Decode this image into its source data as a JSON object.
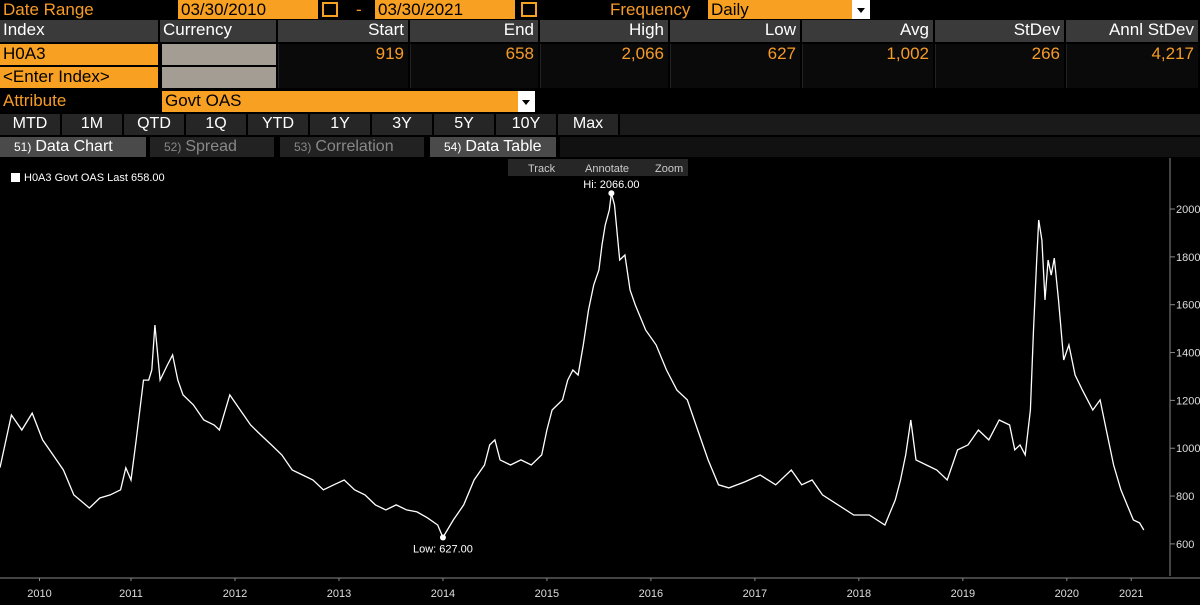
{
  "header": {
    "date_range_label": "Date Range",
    "start_date": "03/30/2010",
    "separator": "-",
    "end_date": "03/30/2021",
    "frequency_label": "Frequency",
    "frequency": "Daily"
  },
  "table": {
    "columns": [
      "Index",
      "Currency",
      "Start",
      "End",
      "High",
      "Low",
      "Avg",
      "StDev",
      "Annl StDev"
    ],
    "index": "H0A3",
    "values": [
      "919",
      "658",
      "2,066",
      "627",
      "1,002",
      "266",
      "4,217"
    ],
    "index_placeholder": "<Enter Index>"
  },
  "attribute": {
    "label": "Attribute",
    "value": "Govt OAS"
  },
  "periods": [
    "MTD",
    "1M",
    "QTD",
    "1Q",
    "YTD",
    "1Y",
    "3Y",
    "5Y",
    "10Y",
    "Max"
  ],
  "tabs": [
    {
      "number": "51)",
      "label": "Data Chart"
    },
    {
      "number": "52)",
      "label": "Spread"
    },
    {
      "number": "53)",
      "label": "Correlation"
    },
    {
      "number": "54)",
      "label": "Data Table"
    }
  ],
  "toolbar": [
    "Track",
    "Annotate",
    "Zoom"
  ],
  "chart_data": {
    "type": "line",
    "x": [
      2010.24,
      2010.35,
      2010.45,
      2010.55,
      2010.65,
      2010.75,
      2010.85,
      2010.95,
      2011.1,
      2011.2,
      2011.3,
      2011.4,
      2011.45,
      2011.5,
      2011.55,
      2011.62,
      2011.67,
      2011.7,
      2011.73,
      2011.78,
      2011.85,
      2011.9,
      2011.95,
      2012.0,
      2012.1,
      2012.2,
      2012.3,
      2012.35,
      2012.45,
      2012.55,
      2012.65,
      2012.75,
      2012.85,
      2012.95,
      2013.05,
      2013.15,
      2013.25,
      2013.35,
      2013.45,
      2013.55,
      2013.65,
      2013.75,
      2013.85,
      2013.95,
      2014.05,
      2014.15,
      2014.25,
      2014.35,
      2014.45,
      2014.5,
      2014.6,
      2014.7,
      2014.8,
      2014.9,
      2014.95,
      2015.0,
      2015.05,
      2015.15,
      2015.25,
      2015.35,
      2015.45,
      2015.5,
      2015.55,
      2015.65,
      2015.7,
      2015.75,
      2015.8,
      2015.85,
      2015.9,
      2015.95,
      2016.0,
      2016.03,
      2016.06,
      2016.1,
      2016.12,
      2016.15,
      2016.2,
      2016.25,
      2016.3,
      2016.35,
      2016.45,
      2016.55,
      2016.65,
      2016.75,
      2016.85,
      2016.95,
      2017.05,
      2017.15,
      2017.25,
      2017.4,
      2017.55,
      2017.7,
      2017.85,
      2017.95,
      2018.05,
      2018.15,
      2018.3,
      2018.45,
      2018.6,
      2018.75,
      2018.85,
      2018.9,
      2018.95,
      2019.0,
      2019.05,
      2019.15,
      2019.25,
      2019.35,
      2019.45,
      2019.55,
      2019.65,
      2019.75,
      2019.85,
      2019.95,
      2020.0,
      2020.05,
      2020.1,
      2020.15,
      2020.18,
      2020.21,
      2020.23,
      2020.26,
      2020.29,
      2020.32,
      2020.35,
      2020.38,
      2020.42,
      2020.47,
      2020.52,
      2020.58,
      2020.65,
      2020.75,
      2020.82,
      2020.88,
      2020.95,
      2021.02,
      2021.08,
      2021.14,
      2021.2,
      2021.24
    ],
    "series": [
      {
        "name": "H0A3 Govt OAS Last 658.00",
        "color": "#ffffff",
        "values": [
          919,
          1139,
          1076,
          1147,
          1035,
          972,
          909,
          805,
          750,
          792,
          805,
          826,
          918,
          867,
          1035,
          1285,
          1285,
          1327,
          1515,
          1285,
          1348,
          1390,
          1285,
          1223,
          1181,
          1118,
          1097,
          1076,
          1223,
          1160,
          1097,
          1055,
          1014,
          972,
          909,
          888,
          867,
          826,
          847,
          867,
          826,
          805,
          763,
          742,
          763,
          742,
          734,
          709,
          679,
          627,
          700,
          763,
          867,
          930,
          1014,
          1035,
          951,
          930,
          951,
          930,
          972,
          1076,
          1160,
          1202,
          1285,
          1327,
          1306,
          1432,
          1578,
          1682,
          1745,
          1850,
          1933,
          1996,
          2066,
          2017,
          1787,
          1808,
          1661,
          1599,
          1494,
          1432,
          1327,
          1243,
          1202,
          1076,
          951,
          847,
          834,
          859,
          888,
          847,
          909,
          847,
          867,
          805,
          763,
          721,
          721,
          679,
          784,
          867,
          972,
          1118,
          951,
          930,
          909,
          867,
          993,
          1014,
          1076,
          1035,
          1118,
          1097,
          993,
          1014,
          972,
          1160,
          1494,
          1787,
          1954,
          1870,
          1620,
          1787,
          1724,
          1795,
          1620,
          1369,
          1432,
          1306,
          1243,
          1160,
          1202,
          1076,
          930,
          826,
          763,
          700,
          688,
          658
        ]
      }
    ],
    "annotations": {
      "high": "Hi: 2066.00",
      "low": "Low: 627.00"
    },
    "xlim": [
      2010.24,
      2021.3
    ],
    "xticks": [
      {
        "value": 2010.62,
        "label": "2010"
      },
      {
        "value": 2011.5,
        "label": "2011"
      },
      {
        "value": 2012.5,
        "label": "2012"
      },
      {
        "value": 2013.5,
        "label": "2013"
      },
      {
        "value": 2014.5,
        "label": "2014"
      },
      {
        "value": 2015.5,
        "label": "2015"
      },
      {
        "value": 2016.5,
        "label": "2016"
      },
      {
        "value": 2017.5,
        "label": "2017"
      },
      {
        "value": 2018.5,
        "label": "2018"
      },
      {
        "value": 2019.5,
        "label": "2019"
      },
      {
        "value": 2020.5,
        "label": "2020"
      },
      {
        "value": 2021.12,
        "label": "2021"
      }
    ],
    "ylim": [
      470,
      2205
    ],
    "yticks": [
      600,
      800,
      1000,
      1200,
      1400,
      1600,
      1800,
      2000
    ]
  }
}
